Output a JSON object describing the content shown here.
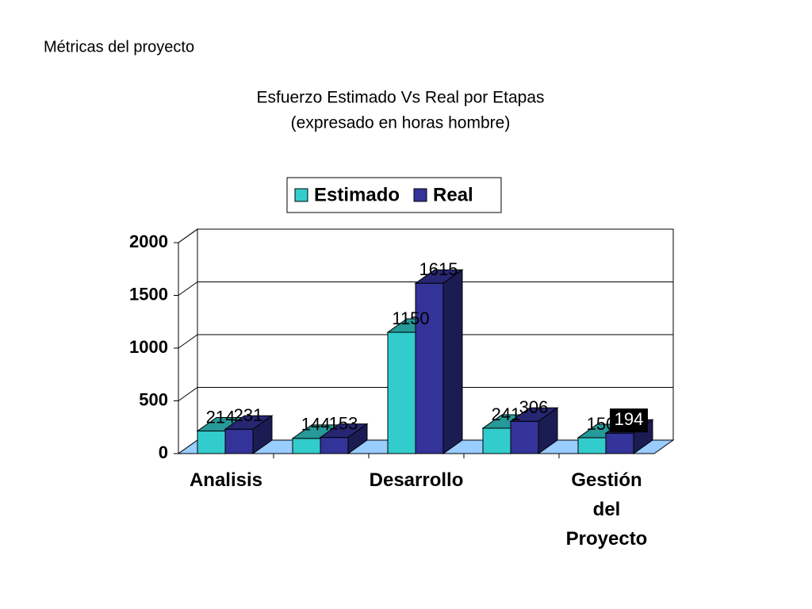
{
  "page_title": "Métricas del proyecto",
  "chart_data": {
    "type": "bar",
    "title": "Esfuerzo Estimado Vs Real por Etapas",
    "subtitle": "(expresado en horas hombre)",
    "categories": [
      "Analisis",
      null,
      "Desarrollo",
      null,
      "Gestión del Proyecto"
    ],
    "series": [
      {
        "name": "Estimado",
        "color": "#33cccc",
        "values": [
          214,
          144,
          1150,
          241,
          150
        ]
      },
      {
        "name": "Real",
        "color": "#333399",
        "values": [
          231,
          153,
          1615,
          306,
          194
        ]
      }
    ],
    "ylim": [
      0,
      2000
    ],
    "yticks": [
      0,
      500,
      1000,
      1500,
      2000
    ],
    "grid": true,
    "legend": "top"
  }
}
